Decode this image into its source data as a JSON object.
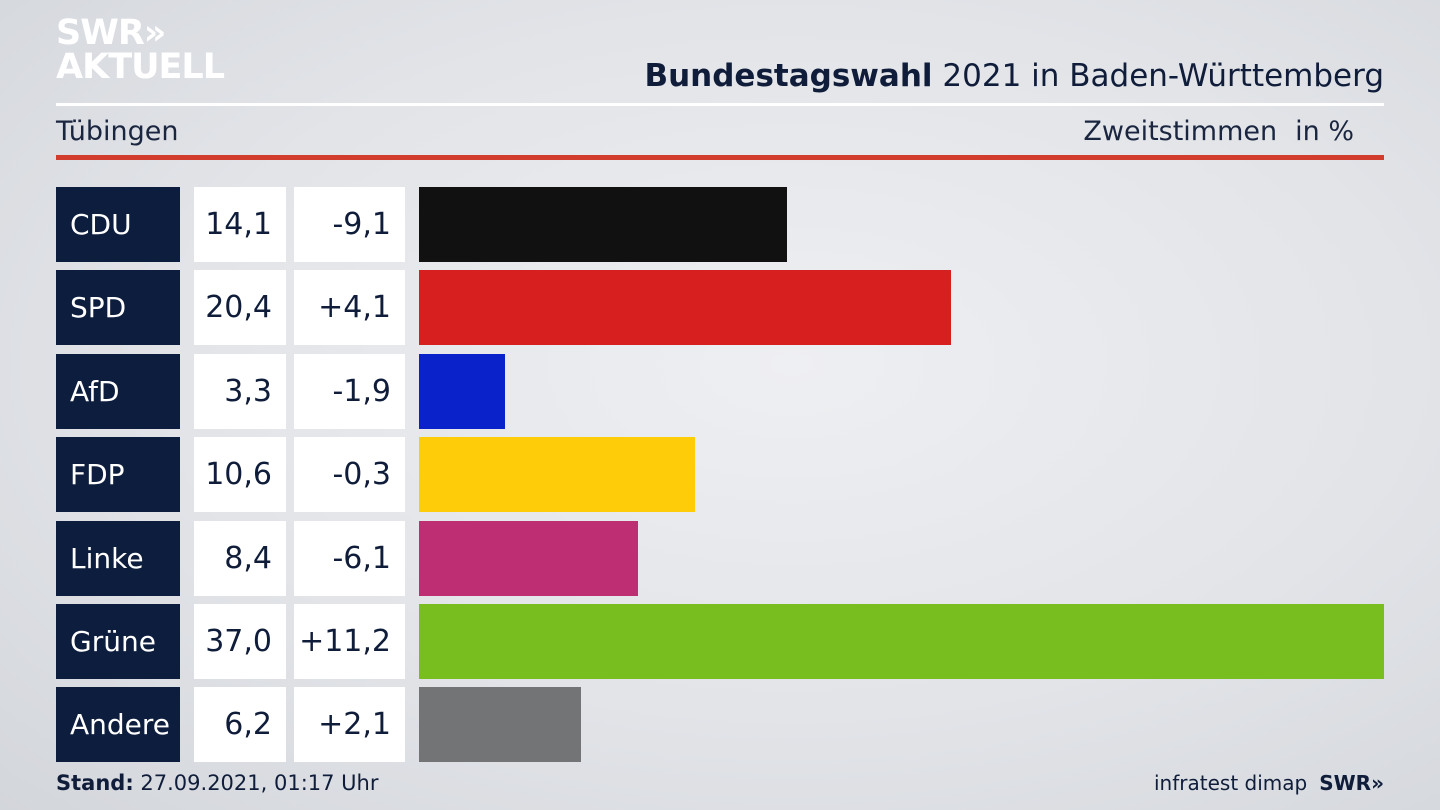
{
  "brand": {
    "line1": "SWR»",
    "line2": "AKTUELL"
  },
  "header": {
    "title_bold": "Bundestagswahl",
    "title_rest": " 2021 in Baden-Württemberg",
    "region": "Tübingen",
    "metric": "Zweitstimmen",
    "unit": "in %"
  },
  "colors": {
    "CDU": "#111111",
    "SPD": "#d81f1f",
    "AfD": "#0a22c9",
    "FDP": "#ffcc0a",
    "Linke": "#bd2f72",
    "Grüne": "#78be1e",
    "Andere": "#737476"
  },
  "chart_data": {
    "type": "bar",
    "orientation": "horizontal",
    "categories": [
      "CDU",
      "SPD",
      "AfD",
      "FDP",
      "Linke",
      "Grüne",
      "Andere"
    ],
    "values": [
      14.1,
      20.4,
      3.3,
      10.6,
      8.4,
      37.0,
      6.2
    ],
    "value_labels": [
      "14,1",
      "20,4",
      "3,3",
      "10,6",
      "8,4",
      "37,0",
      "6,2"
    ],
    "diff_labels": [
      "-9,1",
      "+4,1",
      "-1,9",
      "-0,3",
      "-6,1",
      "+11,2",
      "+2,1"
    ],
    "diffs": [
      -9.1,
      4.1,
      -1.9,
      -0.3,
      -6.1,
      11.2,
      2.1
    ],
    "xlim": [
      0,
      37.0
    ]
  },
  "footer": {
    "stand_label": "Stand:",
    "stand_value": " 27.09.2021, 01:17 Uhr",
    "source": "infratest dimap",
    "brand": "SWR»"
  }
}
